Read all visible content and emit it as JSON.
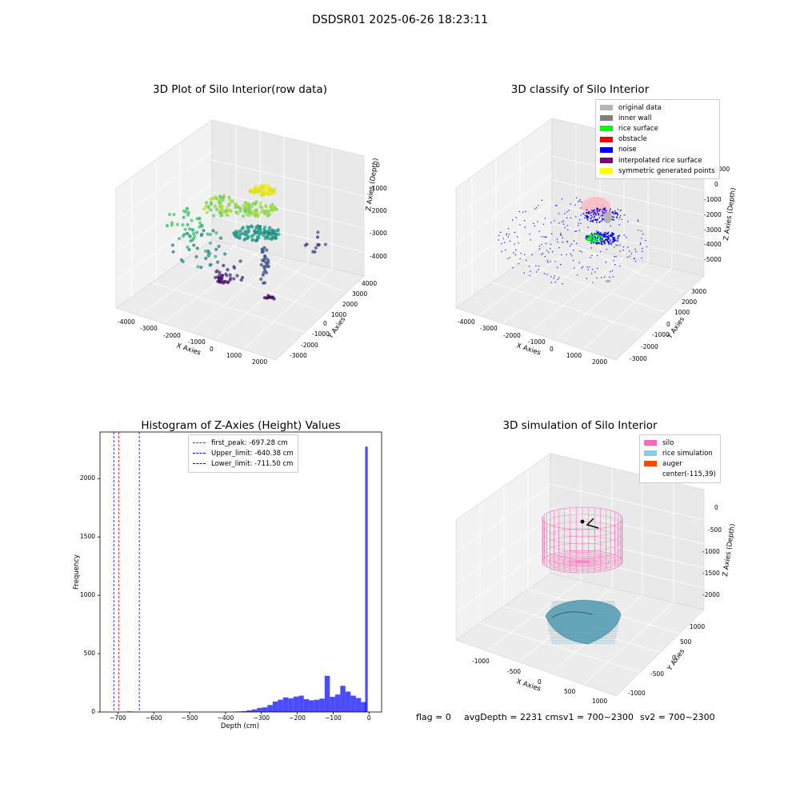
{
  "title": "DSDSR01 2025-06-26 18:23:11",
  "panels": {
    "raw": {
      "title": "3D Plot of Silo Interior(row data)",
      "xlabel": "X Axies",
      "ylabel": "Y Axies",
      "zlabel": "Z Axies (Depth)",
      "xticks": [
        "-4000",
        "-3000",
        "-2000",
        "-1000",
        "0",
        "1000",
        "2000"
      ],
      "yticks": [
        "-3000",
        "-2000",
        "-1000",
        "0",
        "1000",
        "2000",
        "3000",
        "4000"
      ],
      "zticks": [
        "-4000",
        "-3000",
        "-2000",
        "-1000",
        "0"
      ]
    },
    "classify": {
      "title": "3D classify of Silo Interior",
      "xlabel": "X Axies",
      "ylabel": "Y Axies",
      "zlabel": "Z Axies (Depth)",
      "xticks": [
        "-4000",
        "-3000",
        "-2000",
        "-1000",
        "0",
        "1000",
        "2000"
      ],
      "yticks": [
        "-3000",
        "-2000",
        "-1000",
        "0",
        "1000",
        "2000",
        "3000"
      ],
      "zticks": [
        "-5000",
        "-4000",
        "-3000",
        "-2000",
        "-1000",
        "0",
        "1000"
      ],
      "legend": [
        {
          "label": "original data",
          "color": "#b4b4b4"
        },
        {
          "label": "inner wall",
          "color": "#808080"
        },
        {
          "label": "rice surface",
          "color": "#00ff00"
        },
        {
          "label": "obstacle",
          "color": "#ff0000"
        },
        {
          "label": "noise",
          "color": "#0000ff"
        },
        {
          "label": "interpolated rice surface",
          "color": "#800080"
        },
        {
          "label": "symmetric generated points",
          "color": "#ffff00"
        }
      ]
    },
    "simulation": {
      "title": "3D simulation of Silo Interior",
      "xlabel": "X Axies",
      "ylabel": "Y Axies",
      "zlabel": "Z Axies (Depth)",
      "xticks": [
        "-1000",
        "-500",
        "0",
        "500",
        "1000"
      ],
      "yticks": [
        "-1000",
        "-500",
        "0",
        "500",
        "1000"
      ],
      "zticks": [
        "-2000",
        "-1500",
        "-1000",
        "-500",
        "0"
      ],
      "legend": [
        {
          "label": "silo",
          "color": "#ff69b4"
        },
        {
          "label": "rice simulation",
          "color": "#87ceeb"
        },
        {
          "label": "auger",
          "color": "#ff4500"
        },
        {
          "label": "center(-115,39)",
          "color": ""
        }
      ]
    }
  },
  "chart_data": {
    "type": "bar",
    "title": "Histogram of Z-Axies (Height) Values",
    "xlabel": "Depth (cm)",
    "ylabel": "Frequency",
    "xlim": [
      -750,
      35
    ],
    "ylim": [
      0,
      2400
    ],
    "xticks": [
      -700,
      -600,
      -500,
      -400,
      -300,
      -200,
      -100,
      0
    ],
    "yticks": [
      0,
      500,
      1000,
      1500,
      2000
    ],
    "bar_color": "#0000ff",
    "bin_width": 14.5,
    "bins": [
      {
        "x": -667.5,
        "value": 5
      },
      {
        "x": -377.5,
        "value": 3
      },
      {
        "x": -363.0,
        "value": 5
      },
      {
        "x": -348.5,
        "value": 8
      },
      {
        "x": -334.0,
        "value": 14
      },
      {
        "x": -319.5,
        "value": 22
      },
      {
        "x": -305.0,
        "value": 35
      },
      {
        "x": -290.5,
        "value": 40
      },
      {
        "x": -276.0,
        "value": 60
      },
      {
        "x": -261.5,
        "value": 90
      },
      {
        "x": -247.0,
        "value": 105
      },
      {
        "x": -232.5,
        "value": 125
      },
      {
        "x": -218.0,
        "value": 118
      },
      {
        "x": -203.5,
        "value": 132
      },
      {
        "x": -189.0,
        "value": 140
      },
      {
        "x": -174.5,
        "value": 110
      },
      {
        "x": -160.0,
        "value": 100
      },
      {
        "x": -145.5,
        "value": 105
      },
      {
        "x": -131.0,
        "value": 115
      },
      {
        "x": -116.5,
        "value": 310
      },
      {
        "x": -102.0,
        "value": 130
      },
      {
        "x": -87.5,
        "value": 150
      },
      {
        "x": -73.0,
        "value": 225
      },
      {
        "x": -58.5,
        "value": 175
      },
      {
        "x": -44.0,
        "value": 140
      },
      {
        "x": -29.5,
        "value": 120
      },
      {
        "x": -15.0,
        "value": 85
      },
      {
        "x": -7.25,
        "value": 2275
      }
    ],
    "vlines": [
      {
        "label": "first_peak: -697.28 cm",
        "x": -697.28,
        "color": "#ff0000"
      },
      {
        "label": "Upper_limit: -640.38 cm",
        "x": -640.38,
        "color": "#0000ff"
      },
      {
        "label": "Lower_limit: -711.50 cm",
        "x": -711.5,
        "color": "#0000ff"
      }
    ],
    "legend_position": "top-center"
  },
  "footer": {
    "flag": "flag = 0",
    "avg": "avgDepth = 2231 cmsv1 = 700~2300",
    "sv2": "sv2 = 700~2300"
  }
}
